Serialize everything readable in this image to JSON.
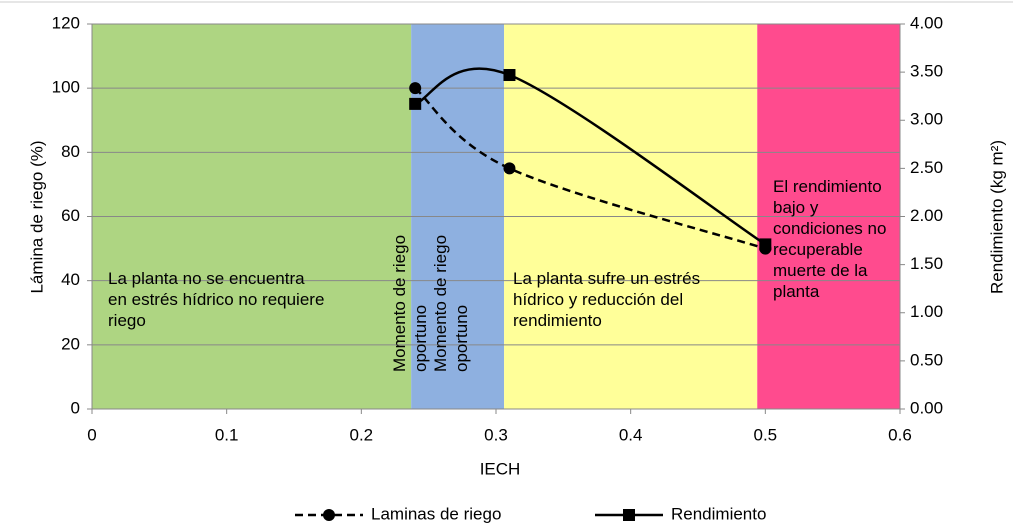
{
  "chart_data": {
    "type": "line",
    "x_label": "IECH",
    "y_label": "Lámina de riego (%)",
    "y2_label": "Rendimiento (kg m²)",
    "xlim": [
      0,
      0.6
    ],
    "xticks": [
      0,
      0.1,
      0.2,
      0.3,
      0.4,
      0.5,
      0.6
    ],
    "ylim": [
      0,
      120
    ],
    "yticks": [
      0,
      20,
      40,
      60,
      80,
      100,
      120
    ],
    "y2lim": [
      0,
      4
    ],
    "y2ticks": [
      {
        "value": 0,
        "label": "0.00"
      },
      {
        "value": 0.5,
        "label": "0.50"
      },
      {
        "value": 1,
        "label": "1.00"
      },
      {
        "value": 1.5,
        "label": "1.50"
      },
      {
        "value": 2,
        "label": "2.00"
      },
      {
        "value": 2.5,
        "label": "2.50"
      },
      {
        "value": 3,
        "label": "3.00"
      },
      {
        "value": 3.5,
        "label": "3.50"
      },
      {
        "value": 4,
        "label": "4.00"
      }
    ],
    "grid": true,
    "regions": [
      {
        "x0": 0,
        "x1": 0.237,
        "color": "#aed582",
        "labels": [
          "La planta no se encuentra en estrés hídrico no requiere riego"
        ]
      },
      {
        "x0": 0.237,
        "x1": 0.306,
        "color": "#8eb0e0",
        "labels": [
          "Momento de riego oportuno",
          "Momento de riego oportuno"
        ]
      },
      {
        "x0": 0.306,
        "x1": 0.494,
        "color": "#ffff99",
        "labels": [
          "La planta sufre un estrés hídrico y reducción del rendimiento"
        ]
      },
      {
        "x0": 0.494,
        "x1": 0.6,
        "color": "#ff4b8e",
        "labels": [
          "El rendimiento bajo y condiciones no recuperable muerte de la planta"
        ]
      }
    ],
    "series": [
      {
        "name": "Laminas de riego",
        "color": "#000000",
        "marker": "circle",
        "dashed": true,
        "x": [
          0.24,
          0.31,
          0.5
        ],
        "values": [
          100,
          75,
          50
        ]
      },
      {
        "name": "Rendimiento",
        "color": "#000000",
        "marker": "square",
        "dashed": false,
        "axis": "y2",
        "x": [
          0.24,
          0.31,
          0.5
        ],
        "values": [
          3.17,
          3.47,
          1.71
        ]
      }
    ]
  }
}
